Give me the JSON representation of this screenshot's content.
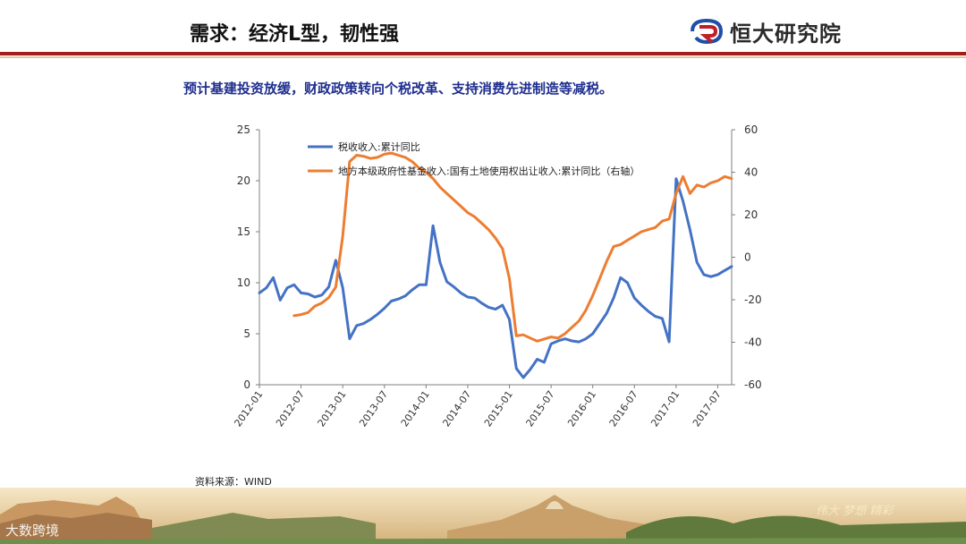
{
  "header": {
    "title": "需求：经济L型，韧性强",
    "brand_name": "恒大研究院"
  },
  "subtitle": "预计基建投资放缓，财政政策转向个税改革、支持消费先进制造等减税。",
  "source": "资料来源：WIND",
  "watermark": "大数跨境",
  "footer_deco": "伟大 梦想 精彩",
  "colors": {
    "accent_red": "#a11e1e",
    "subtitle_blue": "#1f2e8f",
    "series_blue": "#4472c4",
    "series_orange": "#ed7d31"
  },
  "chart_data": {
    "type": "line",
    "title": "",
    "x_ticks": [
      "2012-01",
      "2012-07",
      "2013-01",
      "2013-07",
      "2014-01",
      "2014-07",
      "2015-01",
      "2015-07",
      "2016-01",
      "2016-07",
      "2017-01",
      "2017-07"
    ],
    "x_range": [
      "2012-01",
      "2017-09"
    ],
    "y_left": {
      "min": 0,
      "max": 25,
      "ticks": [
        "0",
        "5",
        "10",
        "15",
        "20",
        "25"
      ]
    },
    "y_right": {
      "min": -60,
      "max": 60,
      "ticks": [
        "-60",
        "-40",
        "-20",
        "0",
        "20",
        "40",
        "60"
      ]
    },
    "grid": false,
    "legend_position": "top-left",
    "series": [
      {
        "name": "税收收入:累计同比",
        "axis": "left",
        "color": "#4472c4",
        "points": [
          [
            "2012-01",
            9.0
          ],
          [
            "2012-02",
            9.5
          ],
          [
            "2012-03",
            10.5
          ],
          [
            "2012-04",
            8.3
          ],
          [
            "2012-05",
            9.5
          ],
          [
            "2012-06",
            9.8
          ],
          [
            "2012-07",
            9.0
          ],
          [
            "2012-08",
            8.9
          ],
          [
            "2012-09",
            8.6
          ],
          [
            "2012-10",
            8.8
          ],
          [
            "2012-11",
            9.6
          ],
          [
            "2012-12",
            12.2
          ],
          [
            "2013-01",
            9.5
          ],
          [
            "2013-02",
            4.5
          ],
          [
            "2013-03",
            5.8
          ],
          [
            "2013-04",
            6.0
          ],
          [
            "2013-05",
            6.4
          ],
          [
            "2013-06",
            6.9
          ],
          [
            "2013-07",
            7.5
          ],
          [
            "2013-08",
            8.2
          ],
          [
            "2013-09",
            8.4
          ],
          [
            "2013-10",
            8.7
          ],
          [
            "2013-11",
            9.3
          ],
          [
            "2013-12",
            9.8
          ],
          [
            "2014-01",
            9.8
          ],
          [
            "2014-02",
            15.6
          ],
          [
            "2014-03",
            12.0
          ],
          [
            "2014-04",
            10.1
          ],
          [
            "2014-05",
            9.6
          ],
          [
            "2014-06",
            9.0
          ],
          [
            "2014-07",
            8.6
          ],
          [
            "2014-08",
            8.5
          ],
          [
            "2014-09",
            8.0
          ],
          [
            "2014-10",
            7.6
          ],
          [
            "2014-11",
            7.4
          ],
          [
            "2014-12",
            7.8
          ],
          [
            "2015-01",
            6.4
          ],
          [
            "2015-02",
            1.6
          ],
          [
            "2015-03",
            0.7
          ],
          [
            "2015-04",
            1.5
          ],
          [
            "2015-05",
            2.5
          ],
          [
            "2015-06",
            2.2
          ],
          [
            "2015-07",
            4.0
          ],
          [
            "2015-08",
            4.3
          ],
          [
            "2015-09",
            4.5
          ],
          [
            "2015-10",
            4.3
          ],
          [
            "2015-11",
            4.2
          ],
          [
            "2015-12",
            4.5
          ],
          [
            "2016-01",
            5.0
          ],
          [
            "2016-02",
            6.0
          ],
          [
            "2016-03",
            7.0
          ],
          [
            "2016-04",
            8.5
          ],
          [
            "2016-05",
            10.5
          ],
          [
            "2016-06",
            10.0
          ],
          [
            "2016-07",
            8.5
          ],
          [
            "2016-08",
            7.8
          ],
          [
            "2016-09",
            7.2
          ],
          [
            "2016-10",
            6.7
          ],
          [
            "2016-11",
            6.5
          ],
          [
            "2016-12",
            4.2
          ],
          [
            "2017-01",
            20.2
          ],
          [
            "2017-02",
            18.0
          ],
          [
            "2017-03",
            15.2
          ],
          [
            "2017-04",
            12.0
          ],
          [
            "2017-05",
            10.8
          ],
          [
            "2017-06",
            10.6
          ],
          [
            "2017-07",
            10.8
          ],
          [
            "2017-08",
            11.2
          ],
          [
            "2017-09",
            11.6
          ]
        ]
      },
      {
        "name": "地方本级政府性基金收入:国有土地使用权出让收入:累计同比（右轴）",
        "axis": "right",
        "color": "#ed7d31",
        "points": [
          [
            "2012-06",
            -27.5
          ],
          [
            "2012-07",
            -27.0
          ],
          [
            "2012-08",
            -26.0
          ],
          [
            "2012-09",
            -23.0
          ],
          [
            "2012-10",
            -21.5
          ],
          [
            "2012-11",
            -19.0
          ],
          [
            "2012-12",
            -14.0
          ],
          [
            "2013-01",
            10.0
          ],
          [
            "2013-02",
            45.0
          ],
          [
            "2013-03",
            48.0
          ],
          [
            "2013-04",
            47.5
          ],
          [
            "2013-05",
            46.5
          ],
          [
            "2013-06",
            47.0
          ],
          [
            "2013-07",
            48.5
          ],
          [
            "2013-08",
            49.0
          ],
          [
            "2013-09",
            48.0
          ],
          [
            "2013-10",
            47.0
          ],
          [
            "2013-11",
            45.0
          ],
          [
            "2013-12",
            42.0
          ],
          [
            "2014-01",
            40.0
          ],
          [
            "2014-02",
            37.0
          ],
          [
            "2014-03",
            33.0
          ],
          [
            "2014-04",
            30.0
          ],
          [
            "2014-05",
            27.0
          ],
          [
            "2014-06",
            24.0
          ],
          [
            "2014-07",
            21.0
          ],
          [
            "2014-08",
            19.0
          ],
          [
            "2014-09",
            16.0
          ],
          [
            "2014-10",
            13.0
          ],
          [
            "2014-11",
            9.0
          ],
          [
            "2014-12",
            4.0
          ],
          [
            "2015-01",
            -10.0
          ],
          [
            "2015-02",
            -37.0
          ],
          [
            "2015-03",
            -36.5
          ],
          [
            "2015-04",
            -38.0
          ],
          [
            "2015-05",
            -39.5
          ],
          [
            "2015-06",
            -38.5
          ],
          [
            "2015-07",
            -37.5
          ],
          [
            "2015-08",
            -38.0
          ],
          [
            "2015-09",
            -36.0
          ],
          [
            "2015-10",
            -33.0
          ],
          [
            "2015-11",
            -30.0
          ],
          [
            "2015-12",
            -25.0
          ],
          [
            "2016-01",
            -18.0
          ],
          [
            "2016-02",
            -10.0
          ],
          [
            "2016-03",
            -2.0
          ],
          [
            "2016-04",
            5.0
          ],
          [
            "2016-05",
            6.0
          ],
          [
            "2016-06",
            8.0
          ],
          [
            "2016-07",
            10.0
          ],
          [
            "2016-08",
            12.0
          ],
          [
            "2016-09",
            13.0
          ],
          [
            "2016-10",
            14.0
          ],
          [
            "2016-11",
            17.0
          ],
          [
            "2016-12",
            18.0
          ],
          [
            "2017-01",
            30.0
          ],
          [
            "2017-02",
            38.0
          ],
          [
            "2017-03",
            30.0
          ],
          [
            "2017-04",
            34.0
          ],
          [
            "2017-05",
            33.0
          ],
          [
            "2017-06",
            35.0
          ],
          [
            "2017-07",
            36.0
          ],
          [
            "2017-08",
            38.0
          ],
          [
            "2017-09",
            37.0
          ]
        ]
      }
    ]
  }
}
